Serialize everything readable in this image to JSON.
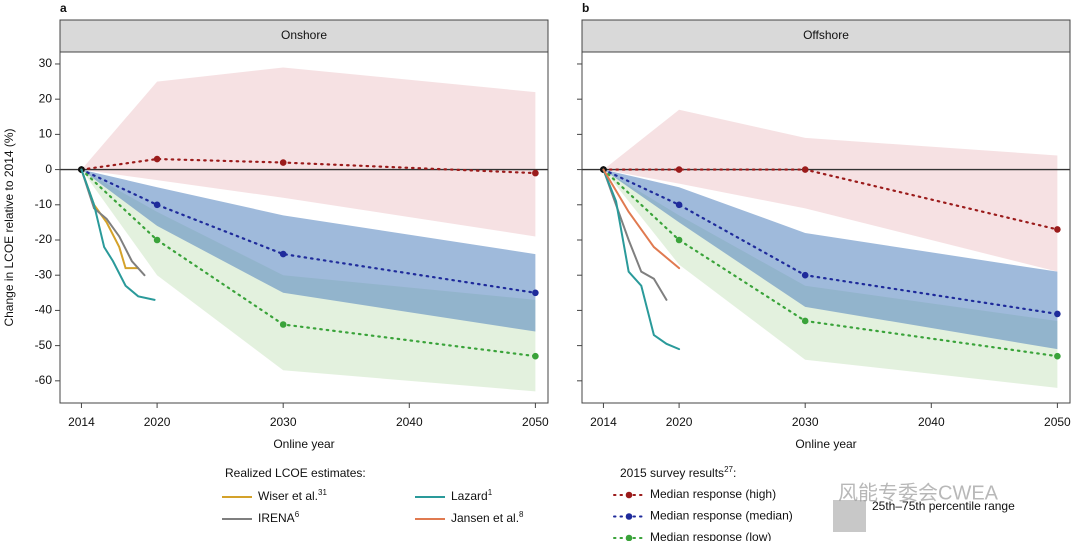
{
  "chart_data": [
    {
      "type": "line",
      "panel_label": "a",
      "title": "Onshore",
      "x_label": "Online year",
      "y_label": "Change in LCOE relative to 2014 (%)",
      "ytick_labels": true,
      "xlim": [
        2012.3,
        2051
      ],
      "ylim": [
        -66.3,
        33.4
      ],
      "xticks": [
        2014,
        2020,
        2030,
        2040,
        2050
      ],
      "yticks": [
        -60,
        -50,
        -40,
        -30,
        -20,
        -10,
        0,
        10,
        20,
        30
      ],
      "hline": 0,
      "bands": [
        {
          "color": "rgba(232,180,186,0.4)",
          "x": [
            2014,
            2020,
            2030,
            2050
          ],
          "upper": [
            0,
            25,
            29,
            22
          ],
          "lower": [
            0,
            -3,
            -8,
            -19
          ]
        },
        {
          "color": "rgba(200,228,190,0.5)",
          "x": [
            2014,
            2020,
            2030,
            2050
          ],
          "upper": [
            0,
            -12,
            -30,
            -37
          ],
          "lower": [
            0,
            -30,
            -57,
            -63
          ]
        },
        {
          "color": "rgba(80,130,190,0.55)",
          "x": [
            2014,
            2020,
            2030,
            2050
          ],
          "upper": [
            0,
            -5,
            -13,
            -24
          ],
          "lower": [
            0,
            -16,
            -35,
            -46
          ]
        }
      ],
      "series": [
        {
          "name": "Median response (high)",
          "color": "#9b1b1b",
          "style": "dotted",
          "x": [
            2014,
            2020,
            2030,
            2050
          ],
          "values": [
            0,
            3,
            2,
            -1
          ]
        },
        {
          "name": "Median response (median)",
          "color": "#1f2b9b",
          "style": "dotted",
          "x": [
            2014,
            2020,
            2030,
            2050
          ],
          "values": [
            0,
            -10,
            -24,
            -35
          ]
        },
        {
          "name": "Median response (low)",
          "color": "#3aa33a",
          "style": "dotted",
          "x": [
            2014,
            2020,
            2030,
            2050
          ],
          "values": [
            0,
            -20,
            -44,
            -53
          ]
        },
        {
          "name": "Wiser et al.",
          "ref": "31",
          "color": "#d4a22a",
          "style": "solid",
          "x": [
            2014,
            2015,
            2016,
            2017,
            2017.5,
            2018.5
          ],
          "values": [
            0,
            -10,
            -15,
            -22,
            -28,
            -28
          ]
        },
        {
          "name": "IRENA",
          "ref": "6",
          "color": "#7f7f7f",
          "style": "solid",
          "x": [
            2014,
            2015,
            2016,
            2017,
            2018,
            2019
          ],
          "values": [
            0,
            -11,
            -14,
            -19,
            -26,
            -30
          ]
        },
        {
          "name": "Lazard",
          "ref": "1",
          "color": "#2a9a9a",
          "style": "solid",
          "x": [
            2014,
            2015,
            2015.8,
            2016.5,
            2017.5,
            2018.5,
            2019.8
          ],
          "values": [
            0,
            -10,
            -22,
            -26,
            -33,
            -36,
            -37
          ]
        }
      ]
    },
    {
      "type": "line",
      "panel_label": "b",
      "title": "Offshore",
      "x_label": "Online year",
      "ytick_labels": false,
      "xlim": [
        2012.3,
        2051
      ],
      "ylim": [
        -66.3,
        33.4
      ],
      "xticks": [
        2014,
        2020,
        2030,
        2040,
        2050
      ],
      "yticks": [
        -60,
        -50,
        -40,
        -30,
        -20,
        -10,
        0,
        10,
        20,
        30
      ],
      "hline": 0,
      "bands": [
        {
          "color": "rgba(232,180,186,0.4)",
          "x": [
            2014,
            2020,
            2030,
            2050
          ],
          "upper": [
            0,
            17,
            9,
            4
          ],
          "lower": [
            0,
            -4,
            -11,
            -29
          ]
        },
        {
          "color": "rgba(200,228,190,0.5)",
          "x": [
            2014,
            2020,
            2030,
            2050
          ],
          "upper": [
            0,
            -13,
            -33,
            -43
          ],
          "lower": [
            0,
            -27,
            -54,
            -62
          ]
        },
        {
          "color": "rgba(80,130,190,0.55)",
          "x": [
            2014,
            2020,
            2030,
            2050
          ],
          "upper": [
            0,
            -5,
            -18,
            -29
          ],
          "lower": [
            0,
            -15,
            -39,
            -51
          ]
        }
      ],
      "series": [
        {
          "name": "Median response (high)",
          "color": "#9b1b1b",
          "style": "dotted",
          "x": [
            2014,
            2020,
            2030,
            2050
          ],
          "values": [
            0,
            0,
            0,
            -17
          ]
        },
        {
          "name": "Median response (median)",
          "color": "#1f2b9b",
          "style": "dotted",
          "x": [
            2014,
            2020,
            2030,
            2050
          ],
          "values": [
            0,
            -10,
            -30,
            -41
          ]
        },
        {
          "name": "Median response (low)",
          "color": "#3aa33a",
          "style": "dotted",
          "x": [
            2014,
            2020,
            2030,
            2050
          ],
          "values": [
            0,
            -20,
            -43,
            -53
          ]
        },
        {
          "name": "IRENA",
          "ref": "6",
          "color": "#7f7f7f",
          "style": "solid",
          "x": [
            2014,
            2015,
            2016,
            2017,
            2018,
            2019
          ],
          "values": [
            0,
            -10,
            -20,
            -29,
            -31,
            -37
          ]
        },
        {
          "name": "Lazard",
          "ref": "1",
          "color": "#2a9a9a",
          "style": "solid",
          "x": [
            2014,
            2015,
            2016,
            2017,
            2018,
            2019,
            2020
          ],
          "values": [
            0,
            -9,
            -29,
            -33,
            -47,
            -49.5,
            -51
          ]
        },
        {
          "name": "Jansen et al.",
          "ref": "8",
          "color": "#e07a50",
          "style": "solid",
          "x": [
            2014,
            2015,
            2016,
            2017,
            2018,
            2019,
            2020
          ],
          "values": [
            0,
            -6,
            -12,
            -17,
            -22,
            -25,
            -28
          ]
        }
      ]
    }
  ],
  "legend": {
    "realized_title": "Realized LCOE estimates:",
    "survey_title": "2015 survey results",
    "survey_ref": "27",
    "survey_suffix": ":",
    "band_label": "25th–75th percentile range",
    "band_color": "#c8c8c8"
  },
  "watermark": "风能专委会CWEA"
}
